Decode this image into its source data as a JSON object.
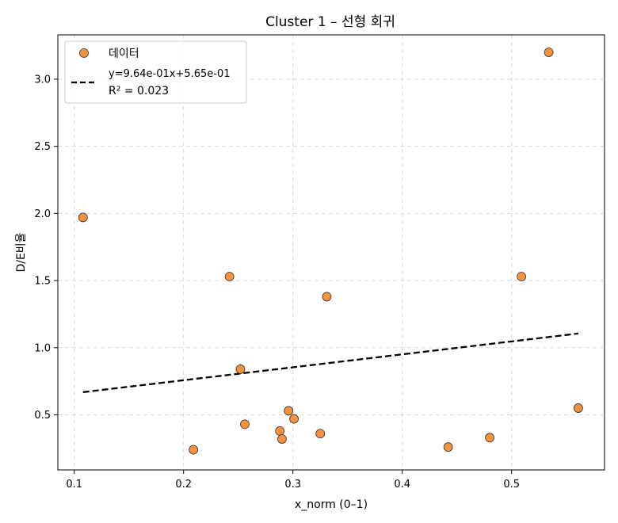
{
  "chart_data": {
    "type": "scatter",
    "title": "Cluster 1 – 선형 회귀",
    "xlabel": "x_norm (0–1)",
    "ylabel": "D/E비율",
    "xlim": [
      0.085,
      0.585
    ],
    "ylim": [
      0.09,
      3.33
    ],
    "xticks": [
      0.1,
      0.2,
      0.3,
      0.4,
      0.5
    ],
    "xtick_labels": [
      "0.1",
      "0.2",
      "0.3",
      "0.4",
      "0.5"
    ],
    "yticks": [
      0.5,
      1.0,
      1.5,
      2.0,
      2.5,
      3.0
    ],
    "ytick_labels": [
      "0.5",
      "1.0",
      "1.5",
      "2.0",
      "2.5",
      "3.0"
    ],
    "grid": true,
    "legend_position": "top-left",
    "series": [
      {
        "name": "데이터",
        "kind": "scatter",
        "color": "#f5923e",
        "points": [
          {
            "x": 0.108,
            "y": 1.97
          },
          {
            "x": 0.209,
            "y": 0.24
          },
          {
            "x": 0.242,
            "y": 1.53
          },
          {
            "x": 0.252,
            "y": 0.84
          },
          {
            "x": 0.256,
            "y": 0.43
          },
          {
            "x": 0.288,
            "y": 0.38
          },
          {
            "x": 0.29,
            "y": 0.32
          },
          {
            "x": 0.296,
            "y": 0.53
          },
          {
            "x": 0.301,
            "y": 0.47
          },
          {
            "x": 0.325,
            "y": 0.36
          },
          {
            "x": 0.331,
            "y": 1.38
          },
          {
            "x": 0.442,
            "y": 0.26
          },
          {
            "x": 0.48,
            "y": 0.33
          },
          {
            "x": 0.509,
            "y": 1.53
          },
          {
            "x": 0.534,
            "y": 3.2
          },
          {
            "x": 0.561,
            "y": 0.55
          }
        ]
      },
      {
        "name": "y=9.64e-01x+5.65e-01",
        "kind": "line",
        "color": "#000000",
        "dash": "dashed",
        "slope": 0.964,
        "intercept": 0.565,
        "x_range": [
          0.108,
          0.561
        ]
      }
    ],
    "annotation": {
      "r2_label": "R² = 0.023"
    }
  }
}
